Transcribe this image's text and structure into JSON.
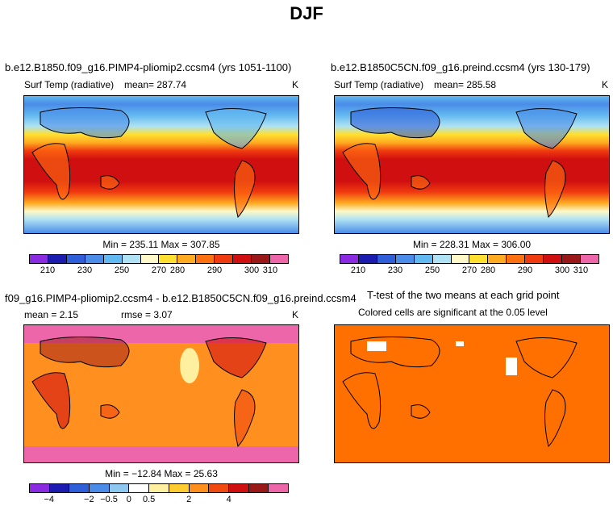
{
  "title": "DJF",
  "panels": {
    "top_left": {
      "case": "b.e12.B1850.f09_g16.PIMP4-pliomip2.ccsm4 (yrs 1051-1100)",
      "variable": "Surf Temp (radiative)",
      "mean": "mean=  287.74",
      "units": "K",
      "minmax": "Min = 235.11  Max = 307.85"
    },
    "top_right": {
      "case": "b.e12.B1850C5CN.f09_g16.preind.ccsm4 (yrs 130-179)",
      "variable": "Surf Temp (radiative)",
      "mean": "mean=  285.58",
      "units": "K",
      "minmax": "Min = 228.31  Max = 306.00"
    },
    "bottom_left": {
      "case": "f09_g16.PIMP4-pliomip2.ccsm4 - b.e12.B1850C5CN.f09_g16.preind.ccsm4",
      "mean": "mean =    2.15",
      "rmse": "rmse =    3.07",
      "units": "K",
      "minmax": "Min = −12.84  Max =  25.63"
    },
    "bottom_right": {
      "title": "T-test of the two means at each grid point",
      "subtitle": "Colored cells are significant at the 0.05 level"
    }
  },
  "colorbar_abs": {
    "colors": [
      "#8a2be2",
      "#1c1cb0",
      "#2e5fd8",
      "#4a8ce8",
      "#62b8f0",
      "#aee2f4",
      "#fff8c8",
      "#ffe030",
      "#ffaa20",
      "#ff7010",
      "#f03a10",
      "#d01010",
      "#9a1818",
      "#ee66aa"
    ],
    "labels": [
      "210",
      "230",
      "250",
      "270",
      "280",
      "290",
      "300",
      "310"
    ],
    "label_positions": [
      1,
      3,
      5,
      7,
      8,
      10,
      12,
      13
    ]
  },
  "colorbar_diff": {
    "colors": [
      "#8a2be2",
      "#1c1cb0",
      "#2e5fd8",
      "#4a8ce8",
      "#8cc8f0",
      "#ffffff",
      "#fff0a0",
      "#ffcc30",
      "#ff9020",
      "#f04a10",
      "#d01010",
      "#9a1818",
      "#ee66aa"
    ],
    "labels": [
      "−4",
      "−2",
      "−0.5",
      "0",
      "0.5",
      "2",
      "4"
    ],
    "label_positions": [
      1,
      3,
      4,
      5,
      6,
      8,
      10
    ]
  }
}
